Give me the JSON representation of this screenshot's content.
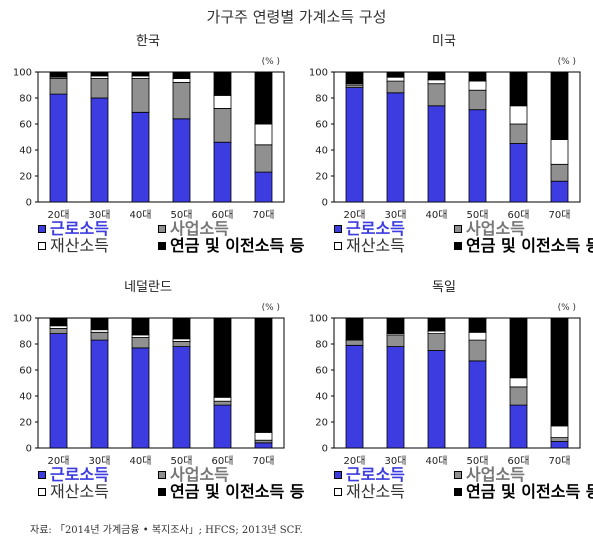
{
  "title": "가구주 연령별 가계소득 구성",
  "source": "자료: 「2014년 가계금융 • 복지조사」; HFCS; 2013년 SCF.",
  "colors": {
    "근로소득": "#3c3ce0",
    "사업소득": "#909090",
    "재산소득": "#ffffff",
    "연금 및 이전소득 등": "#000000"
  },
  "chart_data": [
    {
      "type": "bar",
      "stacked": true,
      "title": "한국",
      "unit": "(% )",
      "categories": [
        "20대",
        "30대",
        "40대",
        "50대",
        "60대",
        "70대"
      ],
      "yticks": [
        "0",
        "20",
        "40",
        "60",
        "80",
        "100"
      ],
      "ylim": [
        0,
        100
      ],
      "series": [
        {
          "name": "근로소득",
          "values": [
            83,
            80,
            69,
            64,
            46,
            23
          ]
        },
        {
          "name": "사업소득",
          "values": [
            12,
            15,
            26,
            28,
            26,
            21
          ]
        },
        {
          "name": "재산소득",
          "values": [
            1,
            2,
            2,
            3,
            10,
            16
          ]
        },
        {
          "name": "연금 및 이전소득 등",
          "values": [
            4,
            3,
            3,
            5,
            18,
            40
          ]
        }
      ]
    },
    {
      "type": "bar",
      "stacked": true,
      "title": "미국",
      "unit": "(% )",
      "categories": [
        "20대",
        "30대",
        "40대",
        "50대",
        "60대",
        "70대"
      ],
      "yticks": [
        "0",
        "20",
        "40",
        "60",
        "80",
        "100"
      ],
      "ylim": [
        0,
        100
      ],
      "series": [
        {
          "name": "근로소득",
          "values": [
            88,
            84,
            74,
            71,
            45,
            16
          ]
        },
        {
          "name": "사업소득",
          "values": [
            2,
            9,
            17,
            15,
            15,
            13
          ]
        },
        {
          "name": "재산소득",
          "values": [
            1,
            3,
            3,
            7,
            14,
            19
          ]
        },
        {
          "name": "연금 및 이전소득 등",
          "values": [
            9,
            4,
            6,
            7,
            26,
            52
          ]
        }
      ]
    },
    {
      "type": "bar",
      "stacked": true,
      "title": "네덜란드",
      "unit": "(% )",
      "categories": [
        "20대",
        "30대",
        "40대",
        "50대",
        "60대",
        "70대"
      ],
      "yticks": [
        "0",
        "20",
        "40",
        "60",
        "80",
        "100"
      ],
      "ylim": [
        0,
        100
      ],
      "series": [
        {
          "name": "근로소득",
          "values": [
            88,
            83,
            77,
            78,
            33,
            4
          ]
        },
        {
          "name": "사업소득",
          "values": [
            4,
            6,
            8,
            4,
            3,
            2
          ]
        },
        {
          "name": "재산소득",
          "values": [
            2,
            2,
            2,
            2,
            3,
            6
          ]
        },
        {
          "name": "연금 및 이전소득 등",
          "values": [
            6,
            9,
            13,
            16,
            61,
            88
          ]
        }
      ]
    },
    {
      "type": "bar",
      "stacked": true,
      "title": "독일",
      "unit": "(% )",
      "categories": [
        "20대",
        "30대",
        "40대",
        "50대",
        "60대",
        "70대"
      ],
      "yticks": [
        "0",
        "20",
        "40",
        "60",
        "80",
        "100"
      ],
      "ylim": [
        0,
        100
      ],
      "series": [
        {
          "name": "근로소득",
          "values": [
            79,
            78,
            75,
            67,
            33,
            5
          ]
        },
        {
          "name": "사업소득",
          "values": [
            4,
            9,
            13,
            16,
            14,
            3
          ]
        },
        {
          "name": "재산소득",
          "values": [
            0,
            1,
            2,
            6,
            7,
            9
          ]
        },
        {
          "name": "연금 및 이전소득 등",
          "values": [
            17,
            12,
            10,
            11,
            46,
            83
          ]
        }
      ]
    }
  ]
}
